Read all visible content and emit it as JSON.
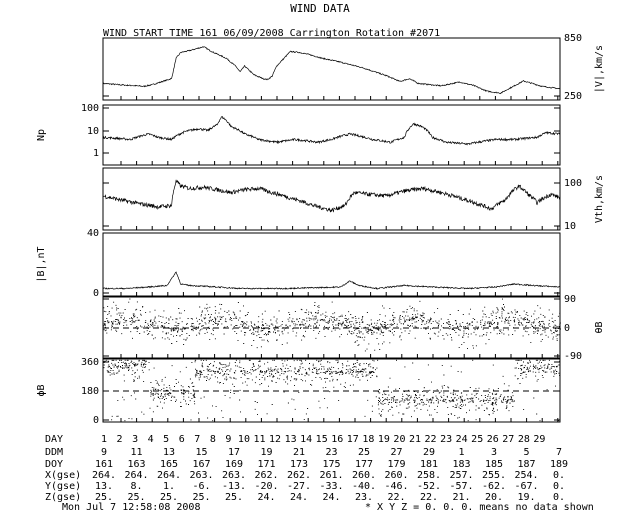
{
  "header": {
    "title": "WIND DATA",
    "subtitle": "WIND START TIME 161 06/09/2008 Carrington Rotation #2071"
  },
  "chart_data": {
    "type": "line",
    "panels": [
      {
        "ylabel": "|V|,km/s",
        "side": "right",
        "ticks": [
          "850",
          "250"
        ],
        "trace": [
          [
            0,
            380
          ],
          [
            4,
            365
          ],
          [
            9,
            350
          ],
          [
            11,
            370
          ],
          [
            15,
            430
          ],
          [
            16,
            640
          ],
          [
            17,
            700
          ],
          [
            19,
            720
          ],
          [
            22,
            760
          ],
          [
            24,
            705
          ],
          [
            27,
            640
          ],
          [
            29,
            560
          ],
          [
            30,
            500
          ],
          [
            31,
            560
          ],
          [
            33,
            470
          ],
          [
            35,
            430
          ],
          [
            36,
            420
          ],
          [
            37,
            455
          ],
          [
            38,
            560
          ],
          [
            40,
            660
          ],
          [
            41,
            710
          ],
          [
            43,
            700
          ],
          [
            45,
            680
          ],
          [
            48,
            640
          ],
          [
            52,
            600
          ],
          [
            57,
            540
          ],
          [
            62,
            460
          ],
          [
            65,
            400
          ],
          [
            67,
            430
          ],
          [
            69,
            380
          ],
          [
            74,
            355
          ],
          [
            78,
            395
          ],
          [
            81,
            360
          ],
          [
            84,
            300
          ],
          [
            87,
            280
          ],
          [
            89,
            330
          ],
          [
            92,
            405
          ],
          [
            94,
            380
          ],
          [
            96,
            350
          ],
          [
            100,
            325
          ]
        ]
      },
      {
        "ylabel": "Np",
        "side": "left",
        "ticks": [
          "100",
          "10",
          "1"
        ],
        "trace": [
          [
            0,
            5
          ],
          [
            6,
            4
          ],
          [
            10,
            7
          ],
          [
            12,
            5
          ],
          [
            15,
            4
          ],
          [
            18,
            9
          ],
          [
            21,
            12
          ],
          [
            23,
            10
          ],
          [
            25,
            18
          ],
          [
            26,
            40
          ],
          [
            28,
            15
          ],
          [
            31,
            7
          ],
          [
            34,
            4
          ],
          [
            38,
            3
          ],
          [
            42,
            4
          ],
          [
            47,
            3
          ],
          [
            50,
            4
          ],
          [
            54,
            7
          ],
          [
            59,
            4
          ],
          [
            63,
            3
          ],
          [
            66,
            5
          ],
          [
            68,
            20
          ],
          [
            70,
            14
          ],
          [
            72,
            5
          ],
          [
            75,
            3
          ],
          [
            80,
            2.5
          ],
          [
            86,
            4
          ],
          [
            90,
            4
          ],
          [
            95,
            5
          ],
          [
            97,
            8
          ],
          [
            100,
            7
          ]
        ]
      },
      {
        "ylabel": "Vth,km/s",
        "side": "right",
        "ticks": [
          "100",
          "10"
        ],
        "trace": [
          [
            0,
            50
          ],
          [
            4,
            40
          ],
          [
            8,
            33
          ],
          [
            12,
            28
          ],
          [
            15,
            30
          ],
          [
            16,
            110
          ],
          [
            17,
            85
          ],
          [
            19,
            75
          ],
          [
            22,
            80
          ],
          [
            25,
            70
          ],
          [
            28,
            60
          ],
          [
            31,
            70
          ],
          [
            34,
            75
          ],
          [
            37,
            60
          ],
          [
            41,
            45
          ],
          [
            46,
            30
          ],
          [
            50,
            23
          ],
          [
            53,
            30
          ],
          [
            55,
            60
          ],
          [
            58,
            55
          ],
          [
            62,
            50
          ],
          [
            66,
            65
          ],
          [
            70,
            75
          ],
          [
            74,
            60
          ],
          [
            78,
            45
          ],
          [
            82,
            33
          ],
          [
            85,
            25
          ],
          [
            88,
            40
          ],
          [
            91,
            85
          ],
          [
            93,
            55
          ],
          [
            95,
            35
          ],
          [
            98,
            55
          ],
          [
            100,
            45
          ]
        ]
      },
      {
        "ylabel": "|B|,nT",
        "side": "left",
        "ticks": [
          "40",
          "0"
        ],
        "trace": [
          [
            0,
            3
          ],
          [
            5,
            3
          ],
          [
            10,
            4
          ],
          [
            14,
            5
          ],
          [
            16,
            14
          ],
          [
            17,
            6
          ],
          [
            19,
            5
          ],
          [
            25,
            4
          ],
          [
            30,
            3
          ],
          [
            40,
            3
          ],
          [
            52,
            4
          ],
          [
            54,
            8
          ],
          [
            56,
            5
          ],
          [
            60,
            3
          ],
          [
            66,
            5
          ],
          [
            72,
            4
          ],
          [
            80,
            3
          ],
          [
            86,
            4
          ],
          [
            90,
            6
          ],
          [
            94,
            5
          ],
          [
            100,
            4
          ]
        ]
      },
      {
        "ylabel": "θB",
        "side": "right",
        "ticks": [
          "90",
          "0",
          "-90"
        ],
        "scatter": true,
        "y_range": [
          -90,
          90
        ]
      },
      {
        "ylabel": "ϕB",
        "side": "left",
        "ticks": [
          "360",
          "180",
          "0"
        ],
        "scatter": true,
        "y_range": [
          0,
          360
        ]
      }
    ],
    "time_axis": {
      "day_label": "DAY",
      "days": [
        "1",
        "2",
        "3",
        "4",
        "5",
        "6",
        "7",
        "8",
        "9",
        "10",
        "11",
        "12",
        "13",
        "14",
        "15",
        "16",
        "17",
        "18",
        "19",
        "20",
        "21",
        "22",
        "23",
        "24",
        "25",
        "26",
        "27",
        "28",
        "29"
      ],
      "ddm_label": "DDM",
      "ddm": [
        "9",
        "11",
        "13",
        "15",
        "17",
        "19",
        "21",
        "23",
        "25",
        "27",
        "29",
        "1",
        "3",
        "5",
        "7"
      ],
      "doy_label": "DOY",
      "doy": [
        "161",
        "163",
        "165",
        "167",
        "169",
        "171",
        "173",
        "175",
        "177",
        "179",
        "181",
        "183",
        "185",
        "187",
        "189"
      ],
      "xgse_label": "X(gse)",
      "xgse": [
        "264.",
        "264.",
        "264.",
        "263.",
        "263.",
        "262.",
        "262.",
        "261.",
        "260.",
        "260.",
        "258.",
        "257.",
        "255.",
        "254.",
        "0."
      ],
      "ygse_label": "Y(gse)",
      "ygse": [
        "13.",
        "8.",
        "1.",
        "-6.",
        "-13.",
        "-20.",
        "-27.",
        "-33.",
        "-40.",
        "-46.",
        "-52.",
        "-57.",
        "-62.",
        "-67.",
        "0."
      ],
      "zgse_label": "Z(gse)",
      "zgse": [
        "25.",
        "25.",
        "25.",
        "25.",
        "25.",
        "24.",
        "24.",
        "24.",
        "23.",
        "22.",
        "22.",
        "21.",
        "20.",
        "19.",
        "0."
      ]
    }
  },
  "footer": {
    "timestamp": "Mon Jul  7 12:58:08 2008",
    "note": "* X Y Z = 0. 0. 0. means no data shown"
  }
}
